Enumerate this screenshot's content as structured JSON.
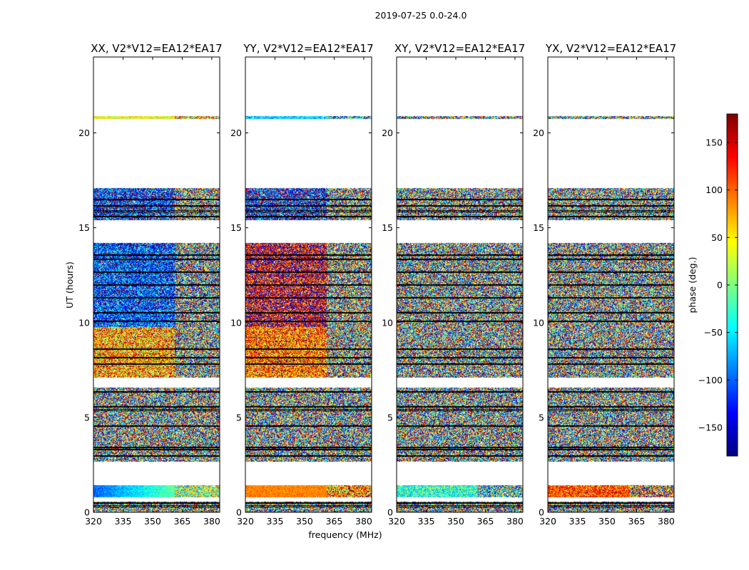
{
  "figure_title": "2019-07-25 0.0-24.0",
  "chart_data": {
    "type": "heatmap",
    "suptitle": "2019-07-25 0.0-24.0",
    "xlabel": "frequency (MHz)",
    "ylabel": "UT (hours)",
    "xlim": [
      320,
      384
    ],
    "ylim": [
      0,
      24
    ],
    "x_ticks": [
      320,
      335,
      350,
      365,
      380
    ],
    "y_ticks": [
      0,
      5,
      10,
      15,
      20
    ],
    "colorbar": {
      "label": "phase (deg.)",
      "range": [
        -180,
        180
      ],
      "ticks": [
        150,
        100,
        50,
        0,
        -50,
        -100,
        -150
      ],
      "tick_labels": [
        "150",
        "100",
        "50",
        "0",
        "−50",
        "−100",
        "−150"
      ],
      "colormap": "jet",
      "colors": [
        "#00007f",
        "#0000ff",
        "#007fff",
        "#00ffff",
        "#7fff7f",
        "#ffff00",
        "#ff7f00",
        "#ff0000",
        "#7f0000"
      ]
    },
    "panels": [
      {
        "title": "XX, V2*V12=EA12*EA17",
        "noise_bias": [
          {
            "y0": 0,
            "y1": 0.6,
            "phase": 0,
            "spread": 1.0
          },
          {
            "y0": 0.8,
            "y1": 1.45,
            "phase": -100,
            "gradient_to": 40,
            "spread": 0.15
          },
          {
            "y0": 2.7,
            "y1": 6.6,
            "phase": 0,
            "spread": 1.0
          },
          {
            "y0": 7.1,
            "y1": 9.8,
            "phase": 80,
            "spread": 0.55
          },
          {
            "y0": 9.8,
            "y1": 14.2,
            "phase": -110,
            "spread": 0.5
          },
          {
            "y0": 15.4,
            "y1": 17.1,
            "phase": -120,
            "spread": 0.55
          },
          {
            "y0": 20.75,
            "y1": 20.9,
            "phase": 40,
            "spread": 0.25
          }
        ]
      },
      {
        "title": "YY, V2*V12=EA12*EA17",
        "noise_bias": [
          {
            "y0": 0,
            "y1": 0.6,
            "phase": 0,
            "spread": 1.0
          },
          {
            "y0": 0.8,
            "y1": 1.45,
            "phase": 90,
            "spread": 0.12
          },
          {
            "y0": 2.7,
            "y1": 6.6,
            "phase": 0,
            "spread": 1.0
          },
          {
            "y0": 7.1,
            "y1": 9.8,
            "phase": 100,
            "spread": 0.5
          },
          {
            "y0": 9.8,
            "y1": 14.2,
            "phase": 150,
            "spread": 0.55
          },
          {
            "y0": 15.4,
            "y1": 17.1,
            "phase": -120,
            "spread": 0.6
          },
          {
            "y0": 20.75,
            "y1": 20.9,
            "phase": -60,
            "spread": 0.25
          }
        ]
      },
      {
        "title": "XY, V2*V12=EA12*EA17",
        "noise_bias": [
          {
            "y0": 0,
            "y1": 0.6,
            "phase": 0,
            "spread": 1.0
          },
          {
            "y0": 0.8,
            "y1": 1.45,
            "phase": -30,
            "spread": 0.35
          },
          {
            "y0": 2.7,
            "y1": 6.6,
            "phase": 0,
            "spread": 1.0
          },
          {
            "y0": 7.1,
            "y1": 14.2,
            "phase": 0,
            "spread": 1.0
          },
          {
            "y0": 15.4,
            "y1": 17.1,
            "phase": 0,
            "spread": 1.0
          },
          {
            "y0": 20.75,
            "y1": 20.9,
            "phase": 0,
            "spread": 1.0
          }
        ]
      },
      {
        "title": "YX, V2*V12=EA12*EA17",
        "noise_bias": [
          {
            "y0": 0,
            "y1": 0.6,
            "phase": 0,
            "spread": 1.0
          },
          {
            "y0": 0.8,
            "y1": 1.45,
            "phase": 110,
            "spread": 0.35
          },
          {
            "y0": 2.7,
            "y1": 6.6,
            "phase": 0,
            "spread": 1.0
          },
          {
            "y0": 7.1,
            "y1": 14.2,
            "phase": 0,
            "spread": 1.0
          },
          {
            "y0": 15.4,
            "y1": 17.1,
            "phase": 0,
            "spread": 1.0
          },
          {
            "y0": 20.75,
            "y1": 20.9,
            "phase": 0,
            "spread": 1.0
          }
        ]
      }
    ],
    "data_rows_ut": [
      [
        0,
        0.6
      ],
      [
        0.8,
        1.45
      ],
      [
        2.7,
        6.6
      ],
      [
        7.1,
        14.2
      ],
      [
        15.4,
        17.1
      ],
      [
        20.75,
        20.9
      ]
    ],
    "flagged_rows_ut": [
      0.35,
      0.5,
      2.95,
      3.3,
      3.4,
      4.6,
      5.4,
      5.55,
      6.35,
      7.85,
      8.2,
      8.65,
      10.05,
      10.5,
      11.3,
      12.0,
      12.7,
      13.35,
      13.6,
      15.6,
      15.9,
      16.2,
      16.5
    ]
  }
}
